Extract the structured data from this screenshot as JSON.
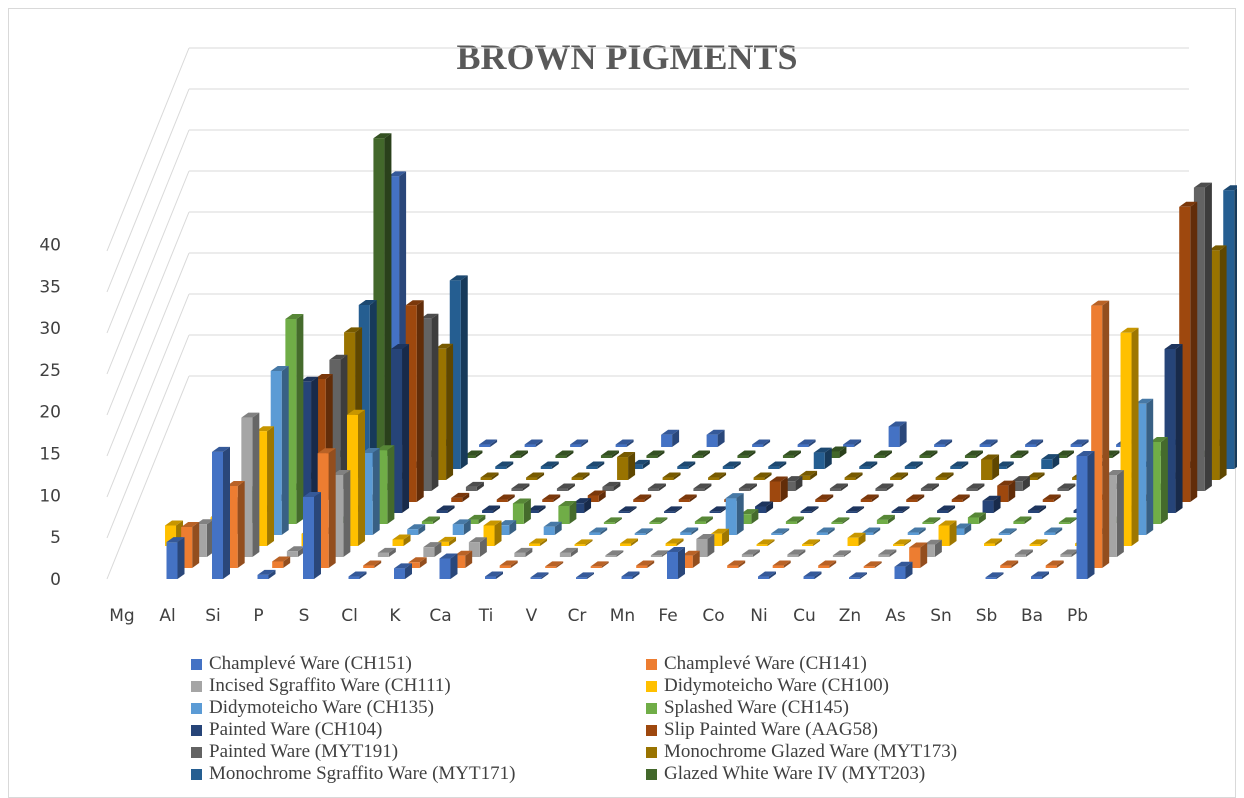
{
  "chart_data": {
    "type": "bar",
    "title": "BROWN PIGMENTS",
    "ylim": [
      0,
      40
    ],
    "yticks": [
      0,
      5,
      10,
      15,
      20,
      25,
      30,
      35,
      40
    ],
    "grid": true,
    "legend_position": "bottom",
    "categories": [
      "Mg",
      "Al",
      "Si",
      "P",
      "S",
      "Cl",
      "K",
      "Ca",
      "Ti",
      "V",
      "Cr",
      "Mn",
      "Fe",
      "Co",
      "Ni",
      "Cu",
      "Zn",
      "As",
      "Sn",
      "Sb",
      "Ba",
      "Pb"
    ],
    "series": [
      {
        "name": "Champlevé Ware (CH151)",
        "color": "#4472c4",
        "values": [
          0,
          4.5,
          15.5,
          0.5,
          10,
          0.3,
          1.3,
          2.5,
          0.3,
          0.2,
          0.2,
          0.3,
          3.3,
          0,
          0.3,
          0.3,
          0.2,
          1.5,
          0,
          0.2,
          0.3,
          15
        ]
      },
      {
        "name": "Champlevé Ware (CH141)",
        "color": "#ed7d31",
        "values": [
          0,
          5,
          10,
          0.8,
          14,
          0.3,
          0.7,
          1.5,
          0.3,
          0.2,
          0.2,
          0.3,
          1.5,
          0.3,
          0.3,
          0.3,
          0.2,
          2.5,
          0,
          0.3,
          0.3,
          32
        ]
      },
      {
        "name": "Incised Sgraffito Ware (CH111)",
        "color": "#a5a5a5",
        "values": [
          0,
          4,
          17,
          0.7,
          10,
          0.5,
          1.2,
          1.8,
          0.5,
          0.5,
          0.2,
          0.2,
          2.2,
          0.3,
          0.3,
          0.2,
          0.3,
          1.5,
          0,
          0.3,
          0.3,
          10
        ]
      },
      {
        "name": "Didymoteicho Ware (CH100)",
        "color": "#ffc000",
        "values": [
          2.5,
          3.5,
          14,
          1.5,
          16,
          0.8,
          0.5,
          2.5,
          0.3,
          0.2,
          0.3,
          0.3,
          1.5,
          0.2,
          0.2,
          1.0,
          0.2,
          2.5,
          0.3,
          0.2,
          0.3,
          26
        ]
      },
      {
        "name": "Didymoteicho Ware (CH135)",
        "color": "#5b9bd5",
        "values": [
          0,
          4,
          20,
          0.3,
          10,
          0.7,
          1.3,
          1.2,
          1.0,
          0.3,
          0.2,
          0.3,
          4.5,
          0.2,
          0.3,
          0.3,
          0.3,
          0.8,
          0.2,
          0.3,
          0.2,
          16
        ]
      },
      {
        "name": "Splashed Ware (CH145)",
        "color": "#70ad47",
        "values": [
          0,
          4,
          25,
          0.3,
          9,
          0.3,
          0.5,
          2.5,
          2.2,
          0.2,
          0.2,
          0.3,
          1.2,
          0.3,
          0.2,
          0.5,
          0.2,
          0.8,
          0.3,
          0.2,
          0.3,
          10
        ]
      },
      {
        "name": "Painted Ware (CH104)",
        "color": "#264478",
        "values": [
          0,
          0.3,
          16,
          0.3,
          20,
          0.3,
          0.3,
          0.3,
          1.2,
          0.2,
          0.2,
          0.2,
          0.8,
          0.2,
          0.2,
          0.2,
          0.3,
          1.5,
          0.3,
          0.3,
          0.3,
          20
        ]
      },
      {
        "name": "Slip Painted Ware (AAG58)",
        "color": "#9e480e",
        "values": [
          0,
          0.3,
          15,
          0.3,
          24,
          0.5,
          0.3,
          0.3,
          0.8,
          0.3,
          0.3,
          0.3,
          2.5,
          0.3,
          0.3,
          0.3,
          0.3,
          2.0,
          0.3,
          0.3,
          0.3,
          36
        ]
      },
      {
        "name": "Painted Ware (MYT191)",
        "color": "#636363",
        "values": [
          0,
          0.3,
          16,
          0.3,
          21,
          0.5,
          0.3,
          0.3,
          0.5,
          0.3,
          0.3,
          0.3,
          1.2,
          0.3,
          0.3,
          0.3,
          0.3,
          1.2,
          0.3,
          0.3,
          0.3,
          37
        ]
      },
      {
        "name": "Monochrome Glazed Ware (MYT173)",
        "color": "#997300",
        "values": [
          0,
          0.3,
          18,
          0.3,
          16,
          0.3,
          0.3,
          0.3,
          2.8,
          0.3,
          0.3,
          0.3,
          0.5,
          0.3,
          0.3,
          0.3,
          2.5,
          0.3,
          0.3,
          0.3,
          0.3,
          28
        ]
      },
      {
        "name": "Monochrome Sgraffito Ware (MYT171)",
        "color": "#255e91",
        "values": [
          0,
          0.3,
          20,
          0.3,
          23,
          0.3,
          0.3,
          0.3,
          0.5,
          0.3,
          0.3,
          0.3,
          2.0,
          0.3,
          0.3,
          0.3,
          0.3,
          1.2,
          0.3,
          0.3,
          0.3,
          34
        ]
      },
      {
        "name": "Glazed White Ware IV (MYT203)",
        "color": "#43682b",
        "values": [
          0,
          0.3,
          39,
          0.3,
          0.3,
          0.3,
          0.3,
          0.3,
          0.3,
          0.3,
          0.3,
          0.3,
          0.8,
          0.3,
          0.3,
          0.3,
          0.3,
          0.3,
          0.3,
          0.3,
          0.3,
          0.3
        ]
      },
      {
        "name": "",
        "color": "#4472c4",
        "values": [
          0,
          0.3,
          33,
          0.3,
          0.3,
          0.3,
          0.3,
          0.3,
          1.5,
          1.5,
          0.3,
          0.3,
          0.3,
          2.5,
          0.3,
          0.3,
          0.3,
          0.3,
          0.3,
          0.3,
          0.3,
          0.3
        ]
      }
    ]
  }
}
